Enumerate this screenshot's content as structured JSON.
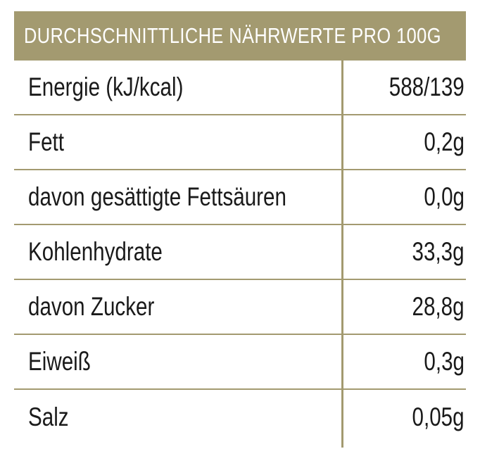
{
  "header": {
    "title": "DURCHSCHNITTLICHE NÄHRWERTE PRO 100G"
  },
  "rows": [
    {
      "label": "Energie (kJ/kcal)",
      "value": "588/139"
    },
    {
      "label": "Fett",
      "value": "0,2g"
    },
    {
      "label": "davon gesättigte Fettsäuren",
      "value": "0,0g"
    },
    {
      "label": "Kohlenhydrate",
      "value": "33,3g"
    },
    {
      "label": "davon Zucker",
      "value": "28,8g"
    },
    {
      "label": "Eiweiß",
      "value": "0,3g"
    },
    {
      "label": "Salz",
      "value": "0,05g"
    }
  ],
  "colors": {
    "accent": "#a39a70",
    "text": "#1a1a1a"
  }
}
